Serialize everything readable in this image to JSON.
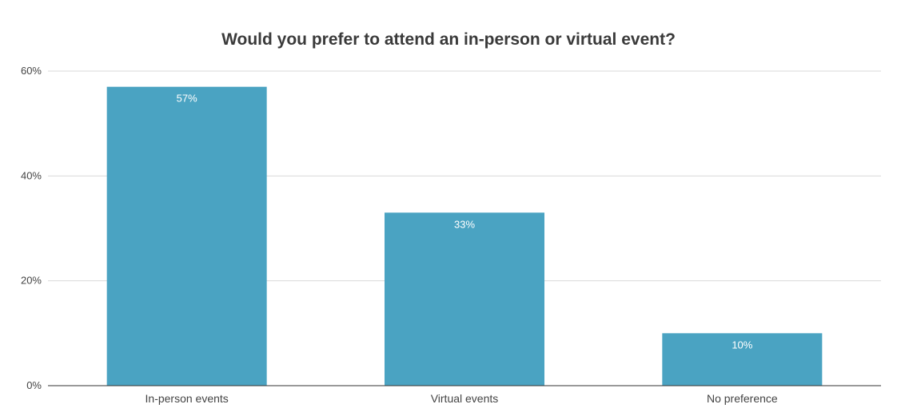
{
  "chart_data": {
    "type": "bar",
    "title": "Would you prefer to attend an in-person or virtual event?",
    "xlabel": "",
    "ylabel": "",
    "categories": [
      "In-person events",
      "Virtual events",
      "No preference"
    ],
    "values": [
      57,
      33,
      10
    ],
    "data_labels": [
      "57%",
      "33%",
      "10%"
    ],
    "ylim": [
      0,
      60
    ],
    "yticks": [
      0,
      20,
      40,
      60
    ],
    "ytick_labels": [
      "0%",
      "20%",
      "40%",
      "60%"
    ],
    "grid": true,
    "legend": "none",
    "bar_color": "#4aa3c2",
    "gridline_color": "#d9d9d9",
    "baseline_color": "#333333"
  }
}
